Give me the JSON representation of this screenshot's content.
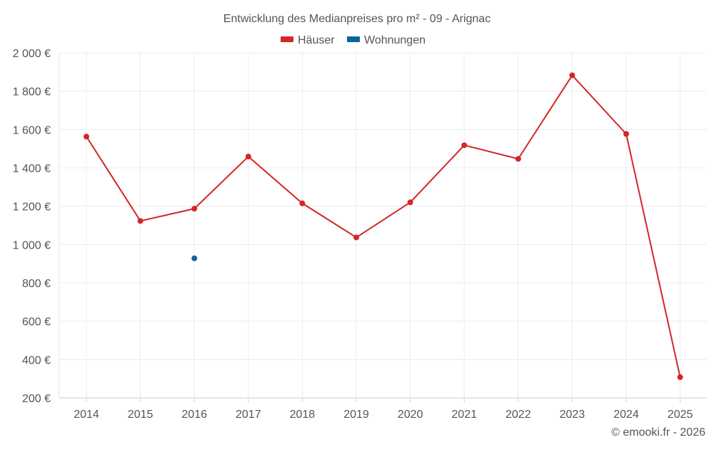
{
  "chart_data": {
    "type": "line",
    "title": "Entwicklung des Medianpreises pro m² - 09 - Arignac",
    "categories": [
      "2014",
      "2015",
      "2016",
      "2017",
      "2018",
      "2019",
      "2020",
      "2021",
      "2022",
      "2023",
      "2024",
      "2025"
    ],
    "series": [
      {
        "name": "Häuser",
        "color": "#d32626",
        "values": [
          1563,
          1123,
          1187,
          1459,
          1215,
          1037,
          1220,
          1518,
          1447,
          1883,
          1577,
          308
        ]
      },
      {
        "name": "Wohnungen",
        "color": "#0b64a0",
        "values": [
          null,
          null,
          928,
          null,
          null,
          null,
          null,
          null,
          null,
          null,
          null,
          null
        ]
      }
    ],
    "ylim": [
      200,
      2000
    ],
    "yticks": [
      200,
      400,
      600,
      800,
      1000,
      1200,
      1400,
      1600,
      1800,
      2000
    ],
    "ytick_labels": [
      "200 €",
      "400 €",
      "600 €",
      "800 €",
      "1 000 €",
      "1 200 €",
      "1 400 €",
      "1 600 €",
      "1 800 €",
      "2 000 €"
    ],
    "xlabel": "",
    "ylabel": "",
    "grid": true,
    "legend_position": "top-center"
  },
  "credit": "© emooki.fr - 2026"
}
